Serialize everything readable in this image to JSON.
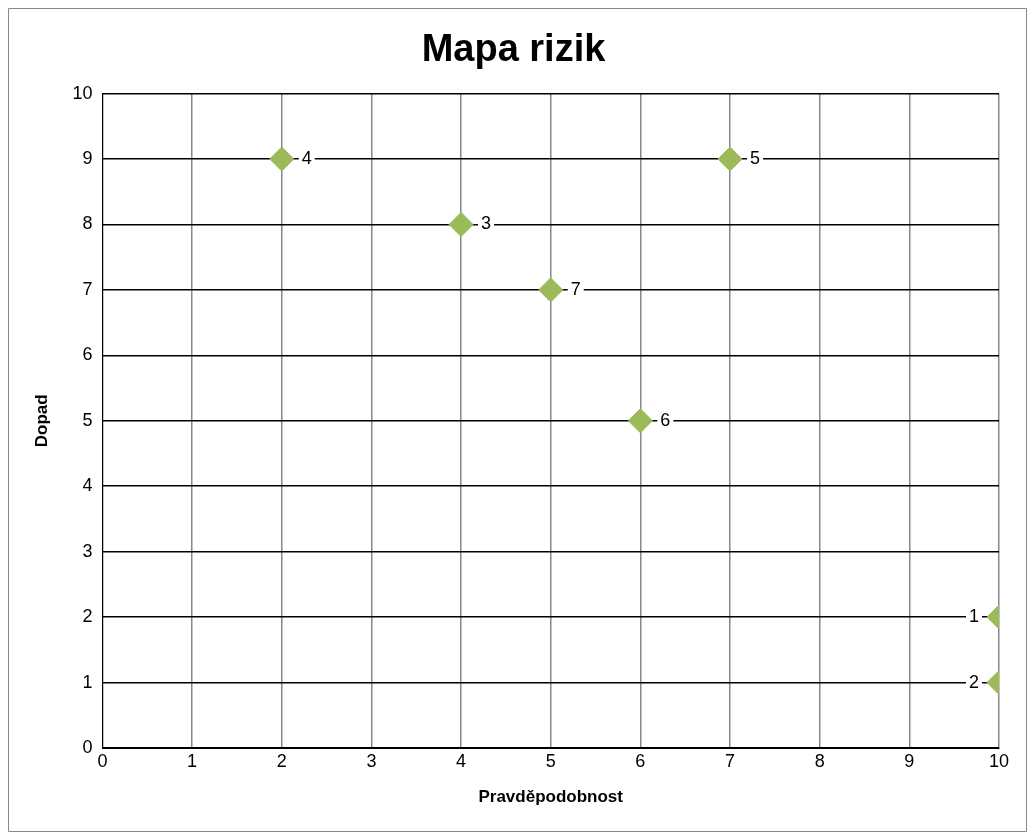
{
  "chart_data": {
    "type": "scatter",
    "title": "Mapa rizik",
    "xlabel": "Pravděpodobnost",
    "ylabel": "Dopad",
    "x": [
      10,
      10,
      4,
      2,
      7,
      6,
      5
    ],
    "values": [
      2,
      1,
      8,
      9,
      9,
      5,
      7
    ],
    "annotations": [
      {
        "text": "1",
        "x": 10,
        "y": 2
      },
      {
        "text": "2",
        "x": 10,
        "y": 1
      },
      {
        "text": "3",
        "x": 4,
        "y": 8
      },
      {
        "text": "4",
        "x": 2,
        "y": 9
      },
      {
        "text": "5",
        "x": 7,
        "y": 9
      },
      {
        "text": "6",
        "x": 6,
        "y": 5
      },
      {
        "text": "7",
        "x": 5,
        "y": 7
      }
    ],
    "color": "#9bbb59",
    "marker": "diamond",
    "grid": true,
    "legend": false,
    "xlim": [
      0,
      10
    ],
    "xticks": [
      0,
      1,
      2,
      3,
      4,
      5,
      6,
      7,
      8,
      9,
      10
    ],
    "ylim": [
      0,
      10
    ],
    "yticks": [
      0,
      1,
      2,
      3,
      4,
      5,
      6,
      7,
      8,
      9,
      10
    ]
  }
}
